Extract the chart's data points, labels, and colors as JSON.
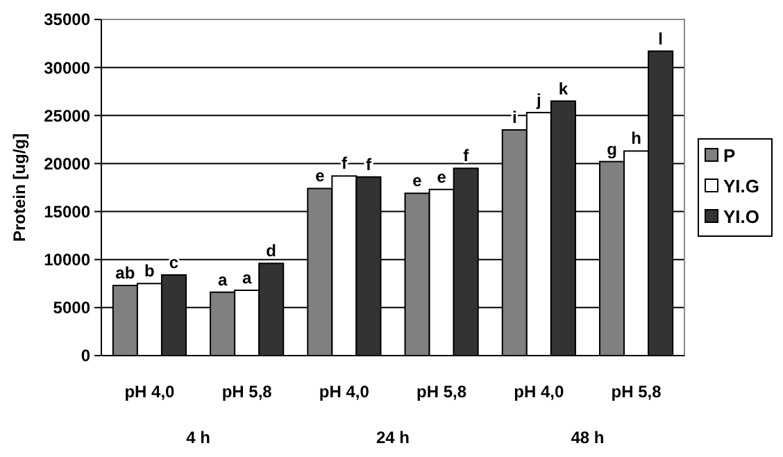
{
  "chart_data": {
    "type": "bar",
    "ylabel": "Protein [ug/g]",
    "categories": [
      "pH 4,0",
      "pH 5,8",
      "pH 4,0",
      "pH 5,8",
      "pH 4,0",
      "pH 5,8"
    ],
    "series": [
      {
        "name": "P",
        "color": "#808080",
        "values": [
          7300,
          6600,
          17400,
          16900,
          23500,
          20200
        ],
        "value_labels": [
          "ab",
          "a",
          "e",
          "e",
          "i",
          "g"
        ]
      },
      {
        "name": "YI.G",
        "color": "#ffffff",
        "values": [
          7500,
          6800,
          18700,
          17300,
          25300,
          21300
        ],
        "value_labels": [
          "b",
          "a",
          "f",
          "e",
          "j",
          "h"
        ]
      },
      {
        "name": "YI.O",
        "color": "#333333",
        "values": [
          8400,
          9600,
          18600,
          19500,
          26500,
          31700
        ],
        "value_labels": [
          "c",
          "d",
          "f",
          "f",
          "k",
          "l"
        ]
      }
    ],
    "ylim": [
      0,
      35000
    ],
    "yticks": [
      0,
      5000,
      10000,
      15000,
      20000,
      25000,
      30000,
      35000
    ],
    "grid": "y",
    "legend": "right",
    "annotations": [
      "4 h",
      "24 h",
      "48 h"
    ]
  }
}
